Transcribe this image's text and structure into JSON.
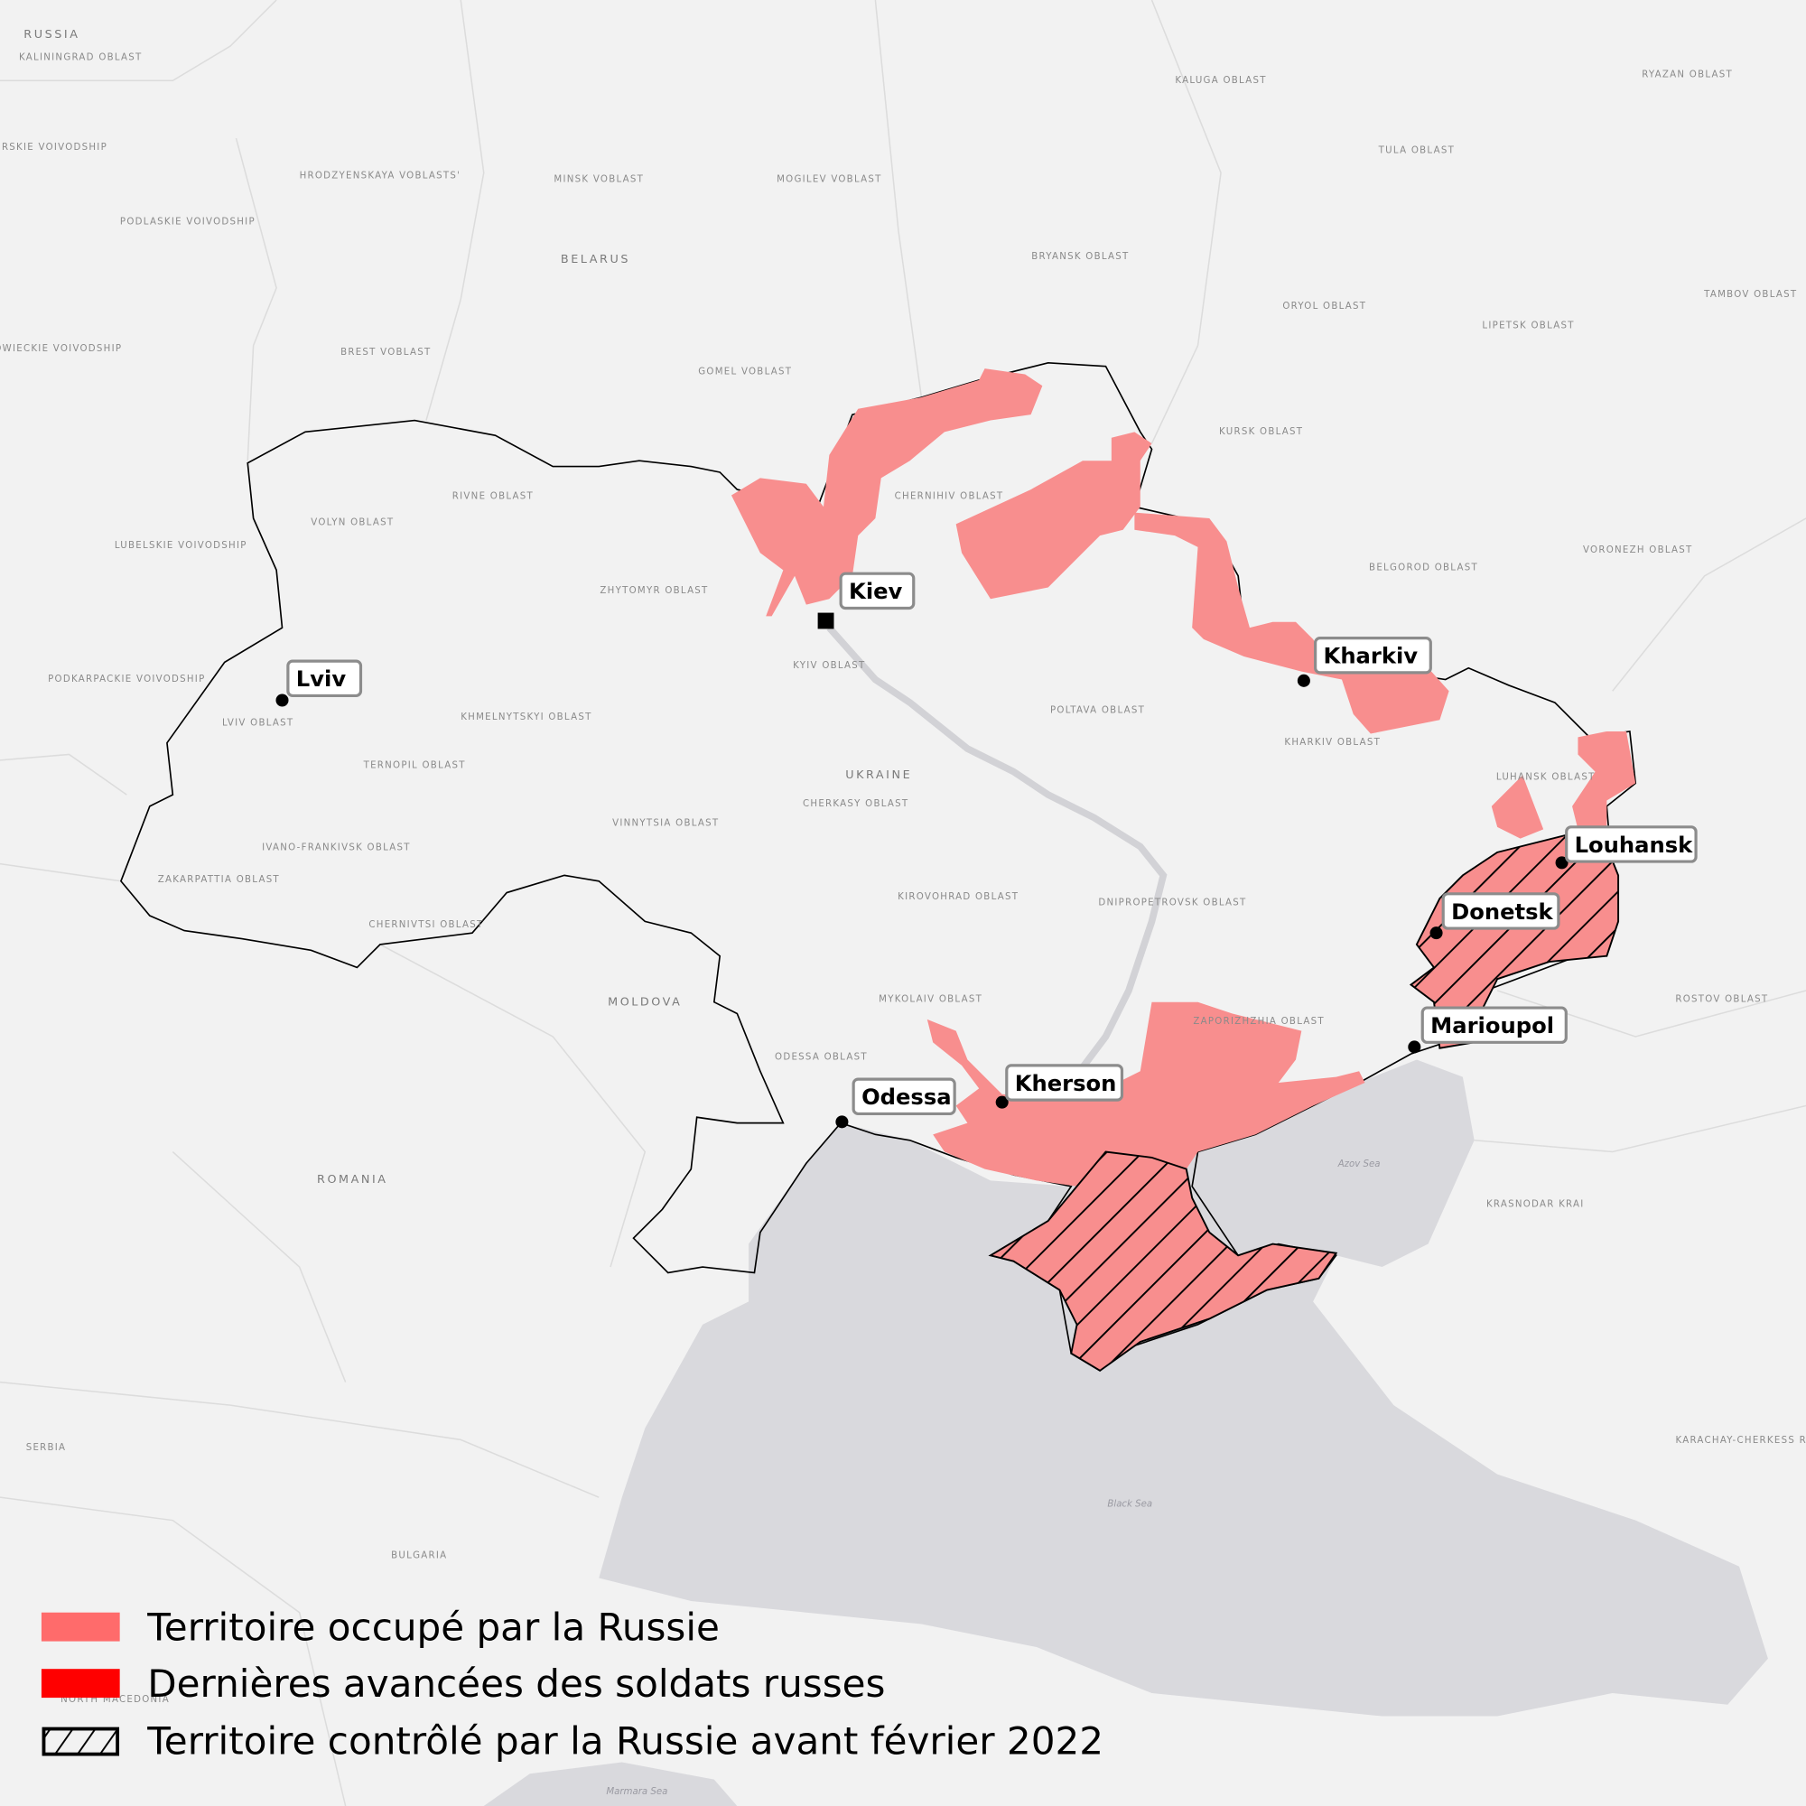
{
  "map": {
    "colors": {
      "background": "#f2f2f2",
      "sea": "#d9d9dd",
      "occupied": "#f88e8e",
      "recent_advances": "#ff0000",
      "border": "#000000"
    },
    "background_labels": [
      "RUSSIA",
      "KALININGRAD OBLAST",
      "MINSKO-ZURSKIE VOIVODSHIP",
      "HRODZYENSKAYA VOBLASTS'",
      "MINSK VOBLAST",
      "MOGILEV VOBLAST",
      "BELARUS",
      "KALUGA OBLAST",
      "TULA OBLAST",
      "RYAZAN OBLAST",
      "BRYANSK OBLAST",
      "ORYOL OBLAST",
      "LIPETSK OBLAST",
      "TAMBOV OBLAST",
      "PODLASKIE VOIVODSHIP",
      "MAZOWIECKIE VOIVODSHIP",
      "BREST VOBLAST",
      "GOMEL VOBLAST",
      "KURSK OBLAST",
      "CHERNIHIV OBLAST",
      "RIVNE OBLAST",
      "VOLYN OBLAST",
      "LUBELSKIE VOIVODSHIP",
      "BELGOROD OBLAST",
      "VORONEZH OBLAST",
      "ZHYTOMYR OBLAST",
      "KYIV OBLAST",
      "PODKARPACKIE VOIVODSHIP",
      "LVIV OBLAST",
      "KHMELNYTSKYI OBLAST",
      "POLTAVA OBLAST",
      "KHARKIV OBLAST",
      "TERNOPIL OBLAST",
      "UKRAINE",
      "CHERKASY OBLAST",
      "LUHANSK OBLAST",
      "VINNYTSIA OBLAST",
      "IVANO-FRANKIVSK OBLAST",
      "ZAKARPATTIA OBLAST",
      "KIROVOHRAD OBLAST",
      "DNIPROPETROVSK OBLAST",
      "CHERNIVTSI OBLAST",
      "MYKOLAIV OBLAST",
      "MOLDOVA",
      "ROSTOV OBLAST",
      "ZAPORIZHZHIA OBLAST",
      "ODESSA OBLAST",
      "ROMANIA",
      "Azov Sea",
      "KRASNODAR KRAI",
      "SERBIA",
      "KARACHAY-CHERKESS REPUBLIC",
      "Black Sea",
      "BULGARIA",
      "NORTH MACEDONIA",
      "Marmara Sea"
    ],
    "cities": [
      {
        "name": "Kiev",
        "marker": "square"
      },
      {
        "name": "Lviv",
        "marker": "dot"
      },
      {
        "name": "Kharkiv",
        "marker": "dot"
      },
      {
        "name": "Louhansk",
        "marker": "dot"
      },
      {
        "name": "Donetsk",
        "marker": "dot"
      },
      {
        "name": "Marioupol",
        "marker": "dot"
      },
      {
        "name": "Kherson",
        "marker": "dot"
      },
      {
        "name": "Odessa",
        "marker": "dot"
      }
    ]
  },
  "legend": {
    "items": [
      {
        "label": "Territoire occupé par la Russie",
        "swatch": "#ff6b6b"
      },
      {
        "label": "Dernières avancées des soldats russes",
        "swatch": "#ff0000"
      },
      {
        "label": "Territoire contrôlé par la Russie avant février 2022",
        "swatch": "hatched"
      }
    ]
  }
}
